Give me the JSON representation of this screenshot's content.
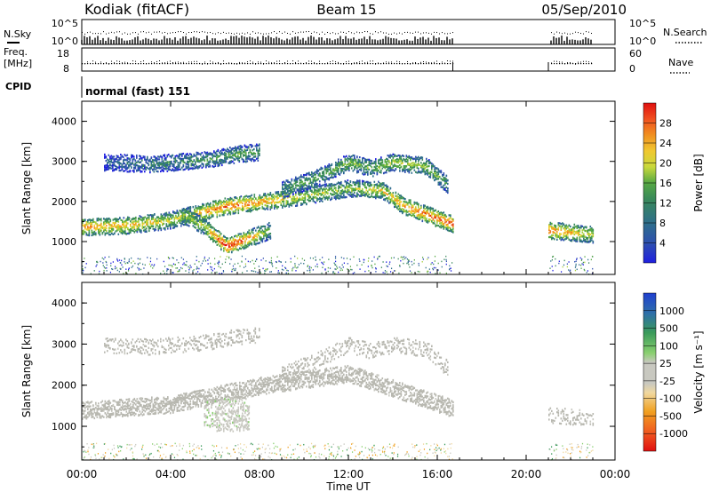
{
  "header": {
    "station": "Kodiak (fitACF)",
    "beam": "Beam 15",
    "date": "05/Sep/2010"
  },
  "strips": {
    "nsky_label": "N.Sky",
    "nsky_ticks": [
      "10^5",
      "10^0"
    ],
    "nsearch_label": "N.Search",
    "nsearch_ticks": [
      "10^5",
      "10^0"
    ],
    "freq_label_line1": "Freq.",
    "freq_label_line2": "[MHz]",
    "freq_ticks": [
      "18",
      "8"
    ],
    "nave_label": "Nave",
    "nave_ticks": [
      "60",
      "0"
    ],
    "cpid_label": "CPID",
    "cpid_value": "normal (fast) 151"
  },
  "colors": {
    "power_scale": [
      "#1f1fe0",
      "#2e4fb0",
      "#2e6f8a",
      "#3a8a5a",
      "#56a844",
      "#a8cf3c",
      "#f0d030",
      "#f4a020",
      "#f07020",
      "#e03018",
      "#e01010"
    ],
    "velocity_scale": [
      "#e01010",
      "#f05a20",
      "#f0a020",
      "#f0d8a0",
      "#c8c8c0",
      "#c8c8c0",
      "#8ad070",
      "#3a9a5a",
      "#2e70a8",
      "#2040d0"
    ],
    "ground_scatter": "#b8b8b0"
  },
  "chart_data": [
    {
      "type": "heatmap",
      "title": "Power",
      "xlabel": "Time UT",
      "ylabel": "Slant Range [km]",
      "x_ticks": [
        "00:00",
        "04:00",
        "08:00",
        "12:00",
        "16:00",
        "20:00",
        "00:00"
      ],
      "xlim_hours": [
        0,
        24
      ],
      "y_ticks": [
        "4000",
        "3000",
        "2000",
        "1000"
      ],
      "ylim": [
        180,
        4500
      ],
      "colorbar_label": "Power [dB]",
      "colorbar_ticks": [
        "28",
        "24",
        "20",
        "16",
        "12",
        "8",
        "4"
      ],
      "colorbar_range": [
        0,
        30
      ],
      "data_gap_hours": [
        16.7,
        21.0
      ],
      "data_end_hour": 23.0,
      "echo_bands": [
        {
          "t": [
            0,
            2,
            4,
            5,
            6.5,
            8,
            10,
            12,
            13.5,
            14.5,
            16.7
          ],
          "range": [
            1380,
            1420,
            1550,
            1700,
            1900,
            2000,
            2150,
            2350,
            2300,
            1900,
            1450
          ],
          "power": [
            22,
            20,
            16,
            20,
            24,
            22,
            16,
            14,
            18,
            22,
            26
          ]
        },
        {
          "t": [
            4.5,
            5.5,
            6.5,
            7.5,
            8.5
          ],
          "range": [
            1700,
            1400,
            900,
            1100,
            1300
          ],
          "power": [
            14,
            16,
            28,
            22,
            12
          ]
        },
        {
          "t": [
            1,
            3,
            5.5,
            7,
            8
          ],
          "range": [
            3000,
            2950,
            3050,
            3200,
            3250
          ],
          "power": [
            6,
            8,
            10,
            12,
            10
          ]
        },
        {
          "t": [
            9,
            10.5,
            12,
            13,
            14,
            15.5,
            16.5
          ],
          "range": [
            2300,
            2600,
            3000,
            2850,
            3000,
            2900,
            2400
          ],
          "power": [
            10,
            12,
            14,
            12,
            16,
            14,
            10
          ]
        },
        {
          "t": [
            21,
            22,
            23
          ],
          "range": [
            1300,
            1250,
            1200
          ],
          "power": [
            24,
            20,
            16
          ]
        }
      ]
    },
    {
      "type": "heatmap",
      "title": "Velocity",
      "xlabel": "Time UT",
      "ylabel": "Slant Range [km]",
      "x_ticks": [
        "00:00",
        "04:00",
        "08:00",
        "12:00",
        "16:00",
        "20:00",
        "00:00"
      ],
      "xlim_hours": [
        0,
        24
      ],
      "y_ticks": [
        "4000",
        "3000",
        "2000",
        "1000"
      ],
      "ylim": [
        180,
        4500
      ],
      "colorbar_label": "Velocity [m s⁻¹]",
      "colorbar_ticks": [
        "1000",
        "500",
        "100",
        "25",
        "-25",
        "-100",
        "-500",
        "-1000"
      ],
      "colorbar_range": [
        -1000,
        1000
      ],
      "data_gap_hours": [
        16.7,
        21.0
      ],
      "data_end_hour": 23.0,
      "features": [
        {
          "name": "ground scatter band",
          "t": [
            0,
            4,
            8,
            12,
            16.7
          ],
          "range": [
            1400,
            1550,
            2000,
            2300,
            1450
          ],
          "velocity": 0
        },
        {
          "name": "positive velocity patch",
          "t": [
            5.5,
            7.5
          ],
          "range": [
            1000,
            1700
          ],
          "velocity": 150
        },
        {
          "name": "negative velocity patch",
          "t": [
            6,
            7.5
          ],
          "range": [
            900,
            1600
          ],
          "velocity": -100
        }
      ]
    }
  ]
}
